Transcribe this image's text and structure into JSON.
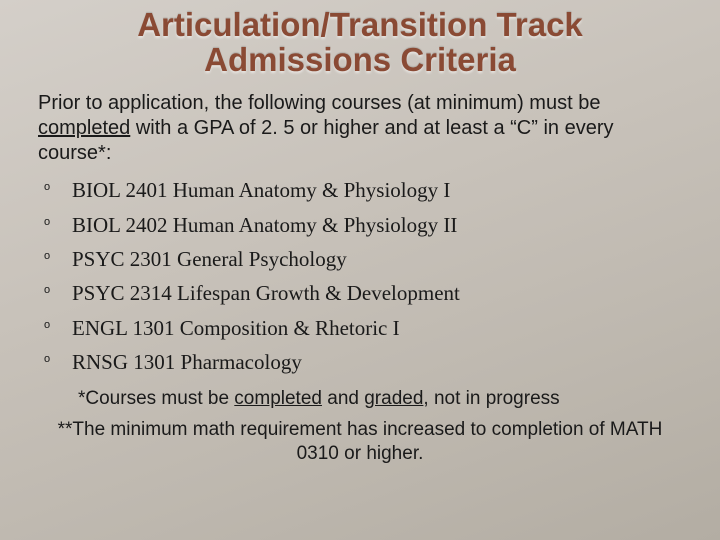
{
  "title": {
    "line1": "Articulation/Transition Track",
    "line2": "Admissions Criteria",
    "color": "#8a4a34",
    "fontsize_pt": 33
  },
  "intro": {
    "pre": "Prior to application, the following courses (at minimum) must be ",
    "underlined": "completed",
    "post": " with a GPA of 2. 5 or higher and at least a “C” in every course*:"
  },
  "courses": [
    "BIOL 2401 Human Anatomy & Physiology I",
    "BIOL 2402 Human Anatomy & Physiology II",
    "PSYC 2301 General Psychology",
    "PSYC 2314 Lifespan Growth & Development",
    "ENGL 1301 Composition & Rhetoric I",
    "RNSG 1301 Pharmacology"
  ],
  "bullet_glyph": "o",
  "note1": {
    "pre": "*Courses must be ",
    "u1": "completed",
    "mid": " and ",
    "u2": "graded",
    "post": ", not in progress"
  },
  "note2": "**The minimum math requirement has increased to completion of MATH 0310 or higher.",
  "styling": {
    "background_gradient": [
      "#d4cfc9",
      "#c8c2ba",
      "#beb8af",
      "#b3ada3"
    ],
    "body_text_color": "#1a1a1a",
    "intro_fontsize_pt": 20,
    "course_fontsize_pt": 21,
    "course_font_family": "Times New Roman",
    "note_fontsize_pt": 19
  }
}
